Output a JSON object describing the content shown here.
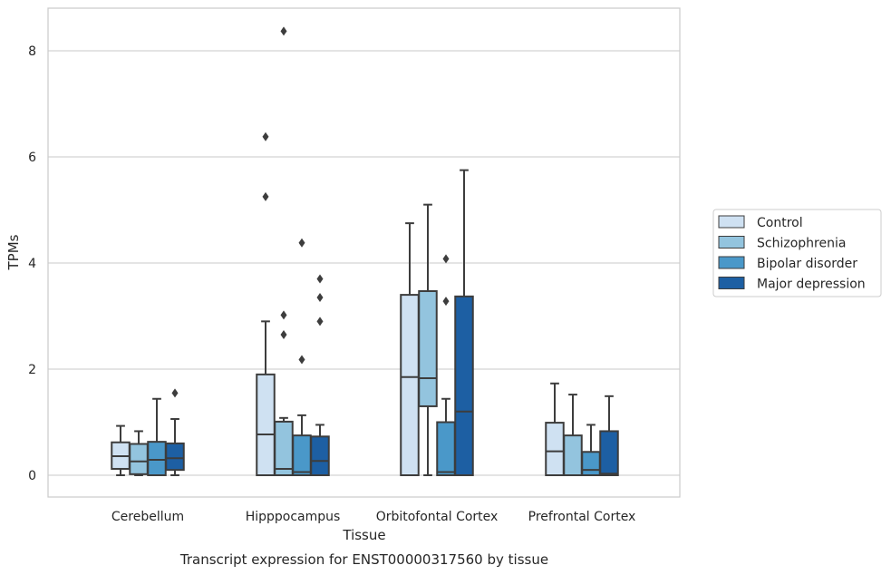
{
  "chart_data": {
    "type": "boxplot",
    "caption": "Transcript expression for ENST00000317560 by tissue",
    "xlabel": "Tissue",
    "ylabel": "TPMs",
    "ylim": [
      -0.4,
      8.8
    ],
    "yticks": [
      0,
      2,
      4,
      6,
      8
    ],
    "grid": "horizontal",
    "legend_position": "right",
    "categories": [
      "Cerebellum",
      "Hipppocampus",
      "Orbitofontal Cortex",
      "Prefrontal Cortex"
    ],
    "series": [
      {
        "name": "Control",
        "color": "#cfe1f2",
        "boxes": [
          {
            "whisker_low": 0.0,
            "q1": 0.12,
            "median": 0.36,
            "q3": 0.62,
            "whisker_high": 0.93,
            "outliers": []
          },
          {
            "whisker_low": 0.0,
            "q1": 0.0,
            "median": 0.77,
            "q3": 1.9,
            "whisker_high": 2.9,
            "outliers": [
              5.25,
              6.38
            ]
          },
          {
            "whisker_low": 0.0,
            "q1": 0.0,
            "median": 1.85,
            "q3": 3.4,
            "whisker_high": 4.75,
            "outliers": []
          },
          {
            "whisker_low": 0.0,
            "q1": 0.0,
            "median": 0.45,
            "q3": 0.99,
            "whisker_high": 1.73,
            "outliers": []
          }
        ]
      },
      {
        "name": "Schizophrenia",
        "color": "#93c4de",
        "boxes": [
          {
            "whisker_low": 0.0,
            "q1": 0.02,
            "median": 0.26,
            "q3": 0.59,
            "whisker_high": 0.83,
            "outliers": []
          },
          {
            "whisker_low": 0.0,
            "q1": 0.0,
            "median": 0.12,
            "q3": 1.01,
            "whisker_high": 1.08,
            "outliers": [
              2.65,
              3.02,
              8.37
            ]
          },
          {
            "whisker_low": 0.0,
            "q1": 1.3,
            "median": 1.83,
            "q3": 3.47,
            "whisker_high": 5.1,
            "outliers": []
          },
          {
            "whisker_low": 0.0,
            "q1": 0.0,
            "median": 0.0,
            "q3": 0.75,
            "whisker_high": 1.52,
            "outliers": []
          }
        ]
      },
      {
        "name": "Bipolar disorder",
        "color": "#4a98c9",
        "boxes": [
          {
            "whisker_low": 0.0,
            "q1": 0.0,
            "median": 0.29,
            "q3": 0.63,
            "whisker_high": 1.44,
            "outliers": []
          },
          {
            "whisker_low": 0.0,
            "q1": 0.0,
            "median": 0.06,
            "q3": 0.75,
            "whisker_high": 1.13,
            "outliers": [
              2.18,
              4.38
            ]
          },
          {
            "whisker_low": 0.0,
            "q1": 0.0,
            "median": 0.06,
            "q3": 1.0,
            "whisker_high": 1.44,
            "outliers": [
              3.28,
              4.08
            ]
          },
          {
            "whisker_low": 0.0,
            "q1": 0.0,
            "median": 0.1,
            "q3": 0.44,
            "whisker_high": 0.95,
            "outliers": []
          }
        ]
      },
      {
        "name": "Major depression",
        "color": "#1d5fa3",
        "boxes": [
          {
            "whisker_low": 0.0,
            "q1": 0.1,
            "median": 0.32,
            "q3": 0.6,
            "whisker_high": 1.06,
            "outliers": [
              1.55
            ]
          },
          {
            "whisker_low": 0.0,
            "q1": 0.0,
            "median": 0.27,
            "q3": 0.73,
            "whisker_high": 0.95,
            "outliers": [
              2.9,
              3.35,
              3.7
            ]
          },
          {
            "whisker_low": 0.0,
            "q1": 0.0,
            "median": 1.2,
            "q3": 3.37,
            "whisker_high": 5.75,
            "outliers": []
          },
          {
            "whisker_low": 0.0,
            "q1": 0.0,
            "median": 0.03,
            "q3": 0.83,
            "whisker_high": 1.49,
            "outliers": []
          }
        ]
      }
    ]
  }
}
